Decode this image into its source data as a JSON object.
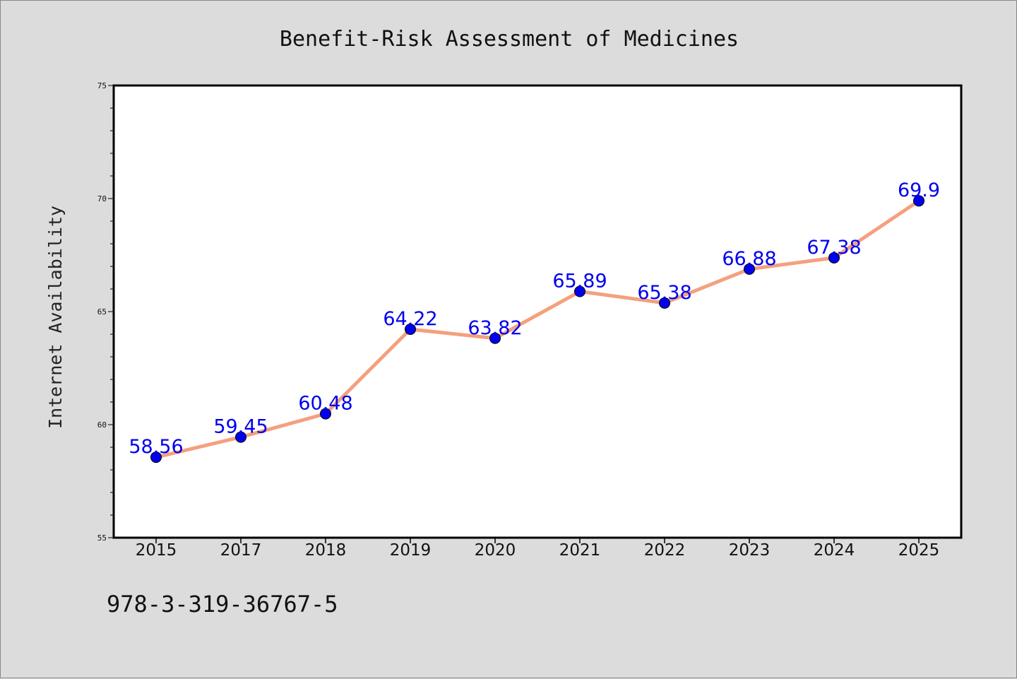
{
  "chart_data": {
    "type": "line",
    "title": "Benefit-Risk Assessment of Medicines",
    "xlabel": "",
    "ylabel": "Internet Availability",
    "categories": [
      "2015",
      "2017",
      "2018",
      "2019",
      "2020",
      "2021",
      "2022",
      "2023",
      "2024",
      "2025"
    ],
    "values": [
      58.56,
      59.45,
      60.48,
      64.22,
      63.82,
      65.89,
      65.38,
      66.88,
      67.38,
      69.9
    ],
    "data_labels": [
      "58.56",
      "59.45",
      "60.48",
      "64.22",
      "63.82",
      "65.89",
      "65.38",
      "66.88",
      "67.38",
      "69.9"
    ],
    "ylim": [
      55,
      75
    ],
    "yticks": [
      "55",
      "60",
      "65",
      "70",
      "75"
    ],
    "grid": false,
    "line_color": "#f4a07e",
    "marker_color": "#0000ee",
    "label_color": "#0000ee",
    "annotation": "978-3-319-36767-5"
  }
}
